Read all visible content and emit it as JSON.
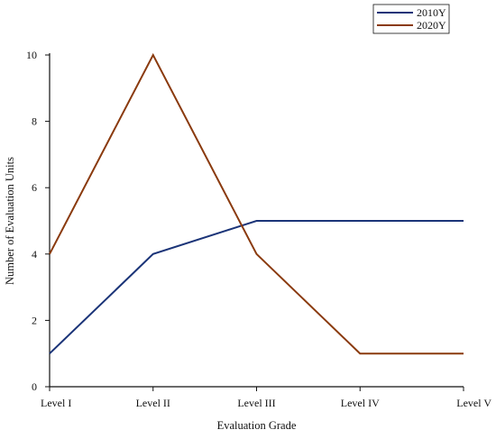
{
  "chart_data": {
    "type": "line",
    "categories": [
      "Level I",
      "Level II",
      "Level III",
      "Level IV",
      "Level V"
    ],
    "series": [
      {
        "name": "2010Y",
        "values": [
          1,
          4,
          5,
          5,
          5
        ],
        "color": "#1b3478"
      },
      {
        "name": "2020Y",
        "values": [
          4,
          10,
          4,
          1,
          1
        ],
        "color": "#8a3a0e"
      }
    ],
    "title": "",
    "xlabel": "Evaluation Grade",
    "ylabel": "Number of  Evaluation Units",
    "ylim": [
      0,
      10
    ],
    "yticks": [
      0,
      2,
      4,
      6,
      8,
      10
    ],
    "grid": false,
    "legend_position": "top-right"
  }
}
